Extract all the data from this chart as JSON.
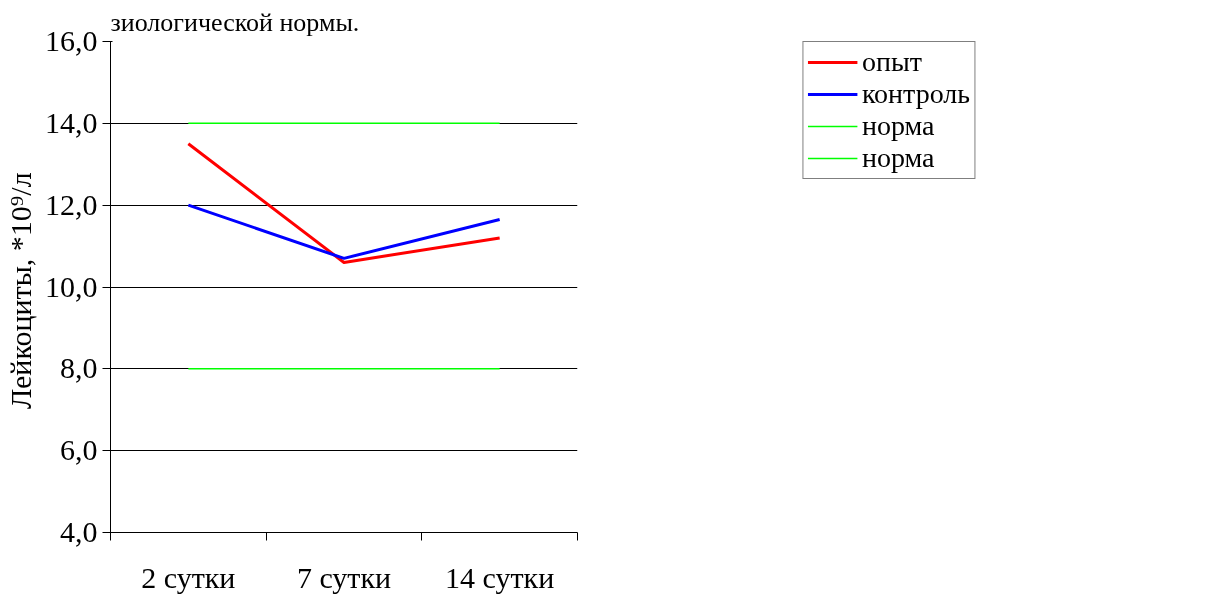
{
  "chart_data": {
    "type": "line",
    "ylabel": "Лейкоциты,  *10⁹/л",
    "annotations": [
      "зиологической нормы."
    ],
    "categories": [
      "2 сутки",
      "7 сутки",
      "14 сутки"
    ],
    "series": [
      {
        "name": "опыт",
        "color": "#ff0000",
        "values": [
          13.5,
          10.6,
          11.2
        ]
      },
      {
        "name": "контроль",
        "color": "#0000ff",
        "values": [
          12.0,
          10.7,
          11.65
        ]
      },
      {
        "name": "норма",
        "color": "#00ff00",
        "values": [
          14.0,
          14.0,
          14.0
        ]
      },
      {
        "name": "норма",
        "color": "#00ff00",
        "values": [
          8.0,
          8.0,
          8.0
        ]
      }
    ],
    "ylim": [
      4.0,
      16.0
    ],
    "yticks": [
      {
        "value": 4,
        "label": "4,0"
      },
      {
        "value": 6,
        "label": "6,0"
      },
      {
        "value": 8,
        "label": "8,0"
      },
      {
        "value": 10,
        "label": "10,0"
      },
      {
        "value": 12,
        "label": "12,0"
      },
      {
        "value": 14,
        "label": "14,0"
      },
      {
        "value": 16,
        "label": "16,0"
      }
    ],
    "grid": "y",
    "legend": "top right",
    "marker": "none",
    "line_style": "solid"
  }
}
